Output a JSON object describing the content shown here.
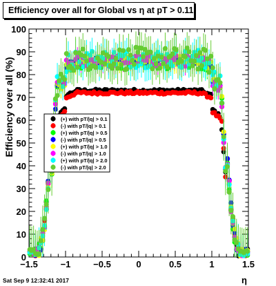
{
  "title": "Efficiency over all for Global vs   η at pT > 0.11",
  "timestamp": "Sat Sep  9 12:32:41 2017",
  "chart_data": {
    "type": "scatter",
    "xlabel": "η",
    "ylabel": "Efficiency over all (%)",
    "xlim": [
      -1.5,
      1.5
    ],
    "ylim": [
      0,
      100
    ],
    "xticks": [
      -1.5,
      -1,
      -0.5,
      0,
      0.5,
      1,
      1.5
    ],
    "xtick_labels": [
      "−1.5",
      "−1",
      "−0.5",
      "0",
      "0.5",
      "1",
      "1.5"
    ],
    "yticks": [
      0,
      10,
      20,
      30,
      40,
      50,
      60,
      70,
      80,
      90,
      100
    ],
    "ytick_labels": [
      "0",
      "10",
      "20",
      "30",
      "40",
      "50",
      "60",
      "70",
      "80",
      "90",
      "100"
    ],
    "legend_position": "left-middle",
    "series": [
      {
        "name": "(+) with pT/|q| > 0.1",
        "color": "#000000",
        "plateau": 73,
        "noise": 0.6,
        "error": 1
      },
      {
        "name": "(-) with pT/|q| > 0.1",
        "color": "#ff0000",
        "plateau": 72,
        "noise": 0.6,
        "error": 1
      },
      {
        "name": "(+) with pT/|q| > 0.5",
        "color": "#00ff00",
        "plateau": 85,
        "noise": 2.5,
        "error": 4
      },
      {
        "name": "(-) with pT/|q| > 0.5",
        "color": "#0000ff",
        "plateau": 86,
        "noise": 1.5,
        "error": 3
      },
      {
        "name": "(+) with pT/|q| > 1.0",
        "color": "#ffff00",
        "plateau": 86,
        "noise": 2.5,
        "error": 4
      },
      {
        "name": "(-) with pT/|q| > 1.0",
        "color": "#ff00ff",
        "plateau": 86,
        "noise": 2.5,
        "error": 4
      },
      {
        "name": "(+) with pT/|q| > 2.0",
        "color": "#00ffff",
        "plateau": 87,
        "noise": 4,
        "error": 6
      },
      {
        "name": "(-) with pT/|q| > 2.0",
        "color": "#66cc33",
        "plateau": 87,
        "noise": 5,
        "error": 7
      }
    ]
  }
}
